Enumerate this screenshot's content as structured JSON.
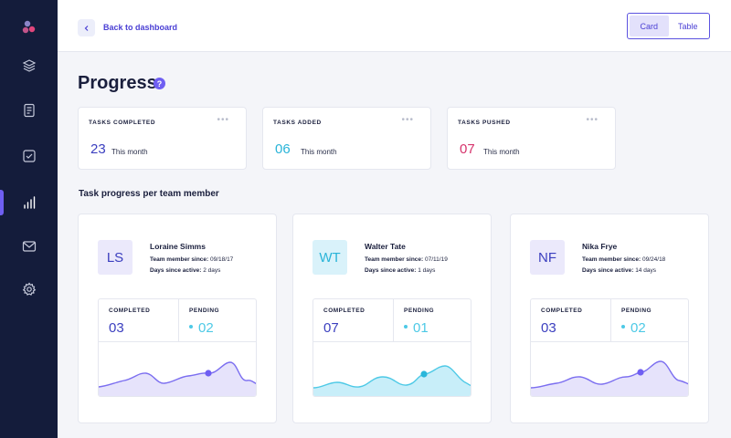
{
  "colors": {
    "sidebar_bg": "#141c3b",
    "accent": "#6f5ff2",
    "completed_blue": "#3b3fbf",
    "added_cyan": "#29b4d8",
    "pushed_pink": "#d6336c",
    "pending_cyan": "#4dc9e6"
  },
  "sidebar": {
    "logo": "brand-logo-icon",
    "items": [
      {
        "icon": "layers-icon"
      },
      {
        "icon": "document-icon"
      },
      {
        "icon": "checkbox-icon"
      },
      {
        "icon": "bar-chart-icon",
        "active": true
      },
      {
        "icon": "mail-icon"
      },
      {
        "icon": "gear-icon"
      }
    ]
  },
  "header": {
    "back_label": "Back to dashboard",
    "view_toggle": [
      {
        "label": "Card",
        "active": true
      },
      {
        "label": "Table",
        "active": false
      }
    ]
  },
  "page": {
    "title": "Progress",
    "help": "?"
  },
  "stats": [
    {
      "label": "TASKS COMPLETED",
      "value": "23",
      "suffix": "This month"
    },
    {
      "label": "TASKS ADDED",
      "value": "06",
      "suffix": "This month"
    },
    {
      "label": "TASKS PUSHED",
      "value": "07",
      "suffix": "This month"
    }
  ],
  "section_title": "Task progress per team member",
  "members": [
    {
      "initials": "LS",
      "name": "Loraine Simms",
      "since_label": "Team member since:",
      "since_value": "09/18/17",
      "active_label": "Days since active:",
      "active_value": "2 days",
      "completed_label": "COMPLETED",
      "completed": "03",
      "pending_label": "PENDING",
      "pending": "02"
    },
    {
      "initials": "WT",
      "name": "Walter Tate",
      "since_label": "Team member since:",
      "since_value": "07/11/19",
      "active_label": "Days since active:",
      "active_value": "1 days",
      "completed_label": "COMPLETED",
      "completed": "07",
      "pending_label": "PENDING",
      "pending": "01"
    },
    {
      "initials": "NF",
      "name": "Nika Frye",
      "since_label": "Team member since:",
      "since_value": "09/24/18",
      "active_label": "Days since active:",
      "active_value": "14 days",
      "completed_label": "COMPLETED",
      "completed": "03",
      "pending_label": "PENDING",
      "pending": "02"
    }
  ]
}
